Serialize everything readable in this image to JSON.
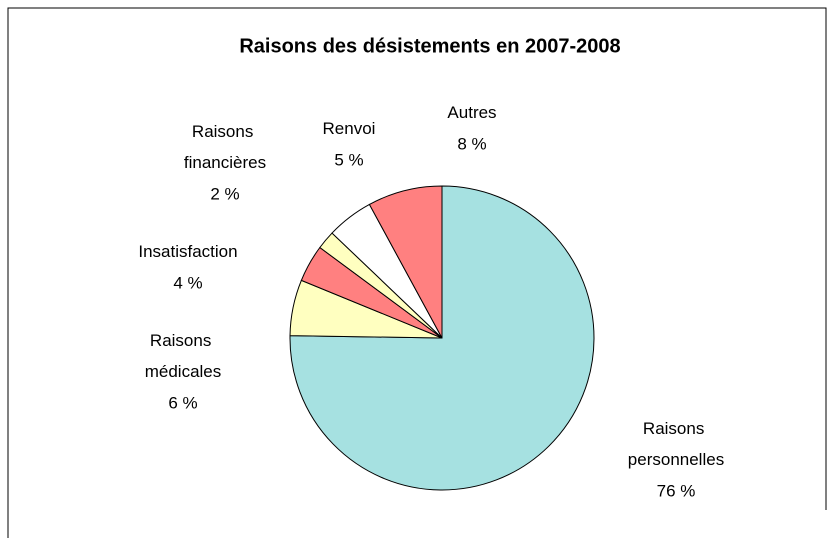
{
  "chart_data": {
    "type": "pie",
    "title": "Raisons des désistements en 2007-2008",
    "categories": [
      "Raisons personnelles",
      "Raisons médicales",
      "Insatisfaction",
      "Raisons financières",
      "Renvoi",
      "Autres"
    ],
    "values": [
      76,
      6,
      4,
      2,
      5,
      8
    ],
    "value_labels": [
      "76 %",
      "6 %",
      "4 %",
      "2 %",
      "5 %",
      "8 %"
    ],
    "colors": [
      "#a6e1e1",
      "#ffffc0",
      "#ff8080",
      "#ffffc0",
      "#ffffff",
      "#ff8080"
    ]
  }
}
